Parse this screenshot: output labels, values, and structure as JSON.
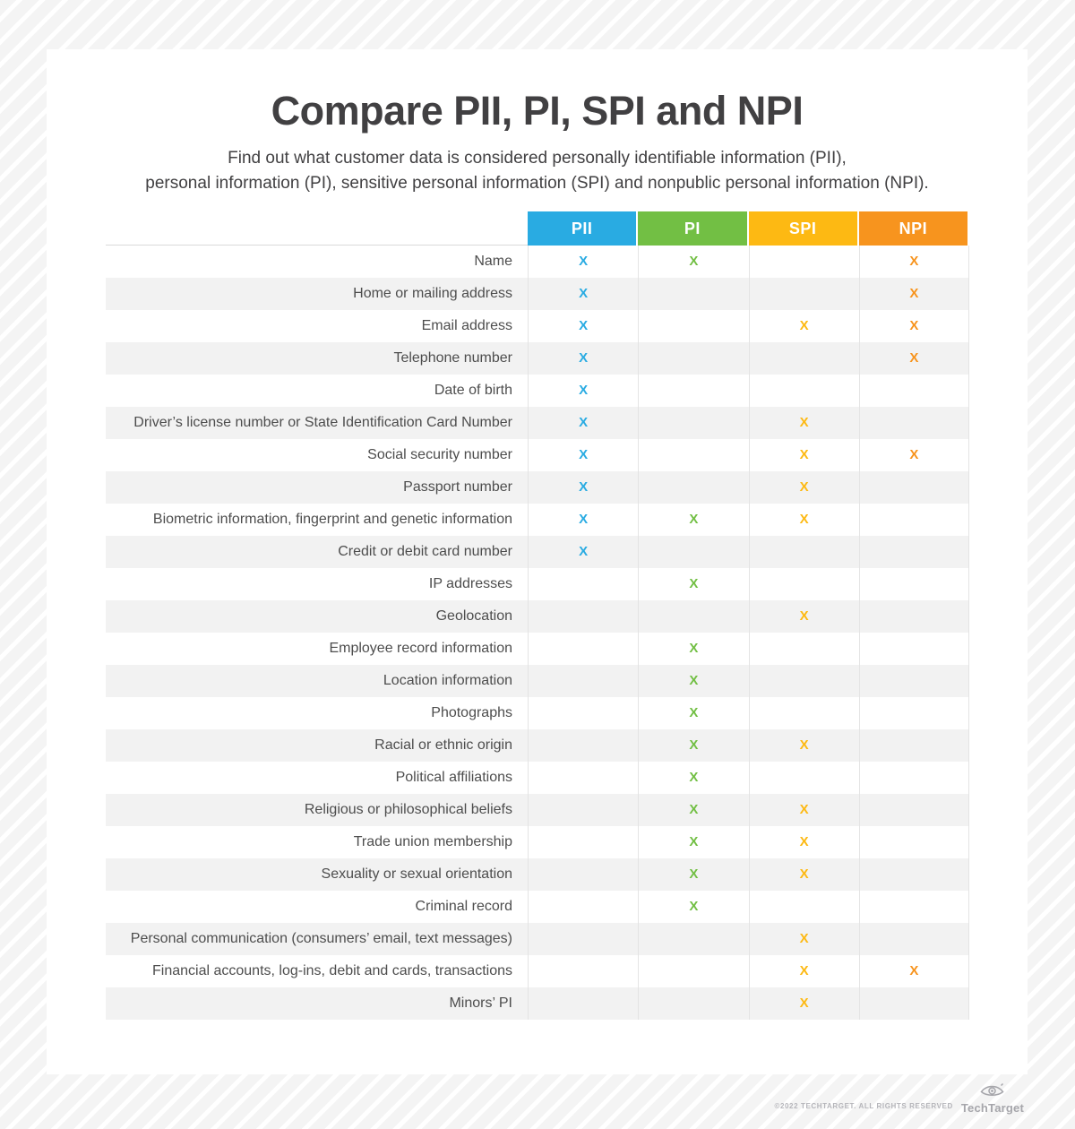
{
  "header": {
    "title": "Compare PII, PI, SPI and NPI",
    "subtitle_line1": "Find out what customer data is considered personally identifiable information (PII),",
    "subtitle_line2": "personal information (PI), sensitive personal information (SPI) and nonpublic personal information (NPI)."
  },
  "chart_data": {
    "type": "table",
    "title": "Compare PII, PI, SPI and NPI",
    "mark_symbol": "X",
    "legend_position": "top",
    "columns": [
      {
        "label": "PII",
        "color": "#29ABE2"
      },
      {
        "label": "PI",
        "color": "#72BF44"
      },
      {
        "label": "SPI",
        "color": "#FDB913"
      },
      {
        "label": "NPI",
        "color": "#F7941E"
      }
    ],
    "rows": [
      {
        "label": "Name",
        "marks": [
          1,
          1,
          0,
          1
        ]
      },
      {
        "label": "Home or mailing address",
        "marks": [
          1,
          0,
          0,
          1
        ]
      },
      {
        "label": "Email address",
        "marks": [
          1,
          0,
          1,
          1
        ]
      },
      {
        "label": "Telephone number",
        "marks": [
          1,
          0,
          0,
          1
        ]
      },
      {
        "label": "Date of birth",
        "marks": [
          1,
          0,
          0,
          0
        ]
      },
      {
        "label": "Driver’s license number or State Identification Card Number",
        "marks": [
          1,
          0,
          1,
          0
        ]
      },
      {
        "label": "Social security number",
        "marks": [
          1,
          0,
          1,
          1
        ]
      },
      {
        "label": "Passport number",
        "marks": [
          1,
          0,
          1,
          0
        ]
      },
      {
        "label": "Biometric information, fingerprint and genetic information",
        "marks": [
          1,
          1,
          1,
          0
        ]
      },
      {
        "label": "Credit or debit card number",
        "marks": [
          1,
          0,
          0,
          0
        ]
      },
      {
        "label": "IP addresses",
        "marks": [
          0,
          1,
          0,
          0
        ]
      },
      {
        "label": "Geolocation",
        "marks": [
          0,
          0,
          1,
          0
        ]
      },
      {
        "label": "Employee record information",
        "marks": [
          0,
          1,
          0,
          0
        ]
      },
      {
        "label": "Location information",
        "marks": [
          0,
          1,
          0,
          0
        ]
      },
      {
        "label": "Photographs",
        "marks": [
          0,
          1,
          0,
          0
        ]
      },
      {
        "label": "Racial or ethnic origin",
        "marks": [
          0,
          1,
          1,
          0
        ]
      },
      {
        "label": "Political affiliations",
        "marks": [
          0,
          1,
          0,
          0
        ]
      },
      {
        "label": "Religious or philosophical beliefs",
        "marks": [
          0,
          1,
          1,
          0
        ]
      },
      {
        "label": "Trade union membership",
        "marks": [
          0,
          1,
          1,
          0
        ]
      },
      {
        "label": "Sexuality or sexual orientation",
        "marks": [
          0,
          1,
          1,
          0
        ]
      },
      {
        "label": "Criminal record",
        "marks": [
          0,
          1,
          0,
          0
        ]
      },
      {
        "label": "Personal communication (consumers’ email, text messages)",
        "marks": [
          0,
          0,
          1,
          0
        ]
      },
      {
        "label": "Financial accounts, log-ins, debit and cards, transactions",
        "marks": [
          0,
          0,
          1,
          1
        ]
      },
      {
        "label": "Minors’ PI",
        "marks": [
          0,
          0,
          1,
          0
        ]
      }
    ]
  },
  "footer": {
    "copyright": "©2022 TECHTARGET. ALL RIGHTS RESERVED",
    "brand": "TechTarget"
  },
  "colors": {
    "pii_blue": "#29ABE2",
    "pi_green": "#72BF44",
    "spi_gold": "#FDB913",
    "npi_orange": "#F7941E",
    "row_stripe": "#F2F2F2",
    "divider": "#E4E4E4",
    "body_text": "#4D4D4D",
    "title_text": "#414042",
    "footer_text": "#B5B5BA",
    "logo_gray": "#A6A6AB",
    "background_stripe": "#F4F4F4"
  }
}
